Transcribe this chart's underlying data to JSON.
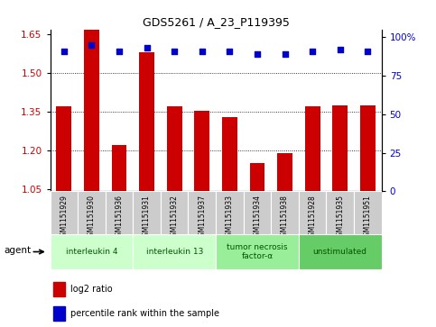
{
  "title": "GDS5261 / A_23_P119395",
  "samples": [
    "GSM1151929",
    "GSM1151930",
    "GSM1151936",
    "GSM1151931",
    "GSM1151932",
    "GSM1151937",
    "GSM1151933",
    "GSM1151934",
    "GSM1151938",
    "GSM1151928",
    "GSM1151935",
    "GSM1151951"
  ],
  "log2_ratio": [
    1.37,
    1.73,
    1.22,
    1.58,
    1.37,
    1.355,
    1.33,
    1.15,
    1.19,
    1.37,
    1.375,
    1.375
  ],
  "percentile": [
    91,
    95,
    91,
    93,
    91,
    91,
    91,
    89,
    89,
    91,
    92,
    91
  ],
  "bar_color": "#cc0000",
  "dot_color": "#0000cc",
  "ylim_left": [
    1.04,
    1.67
  ],
  "yticks_left": [
    1.05,
    1.2,
    1.35,
    1.5,
    1.65
  ],
  "ylim_right": [
    0,
    105
  ],
  "yticks_right": [
    0,
    25,
    50,
    75,
    100
  ],
  "ytick_labels_right": [
    "0",
    "25",
    "50",
    "75",
    "100%"
  ],
  "groups": [
    {
      "label": "interleukin 4",
      "start": 0,
      "end": 3,
      "color": "#ccffcc"
    },
    {
      "label": "interleukin 13",
      "start": 3,
      "end": 6,
      "color": "#ccffcc"
    },
    {
      "label": "tumor necrosis\nfactor-α",
      "start": 6,
      "end": 9,
      "color": "#99ee99"
    },
    {
      "label": "unstimulated",
      "start": 9,
      "end": 12,
      "color": "#66cc66"
    }
  ],
  "agent_label": "agent",
  "legend_bar_label": "log2 ratio",
  "legend_dot_label": "percentile rank within the sample",
  "background_color": "#ffffff",
  "plot_bg_color": "#ffffff",
  "grid_color": "#000000",
  "tick_label_color_left": "#cc0000",
  "tick_label_color_right": "#0000cc",
  "sample_box_color": "#cccccc",
  "border_color": "#888888"
}
